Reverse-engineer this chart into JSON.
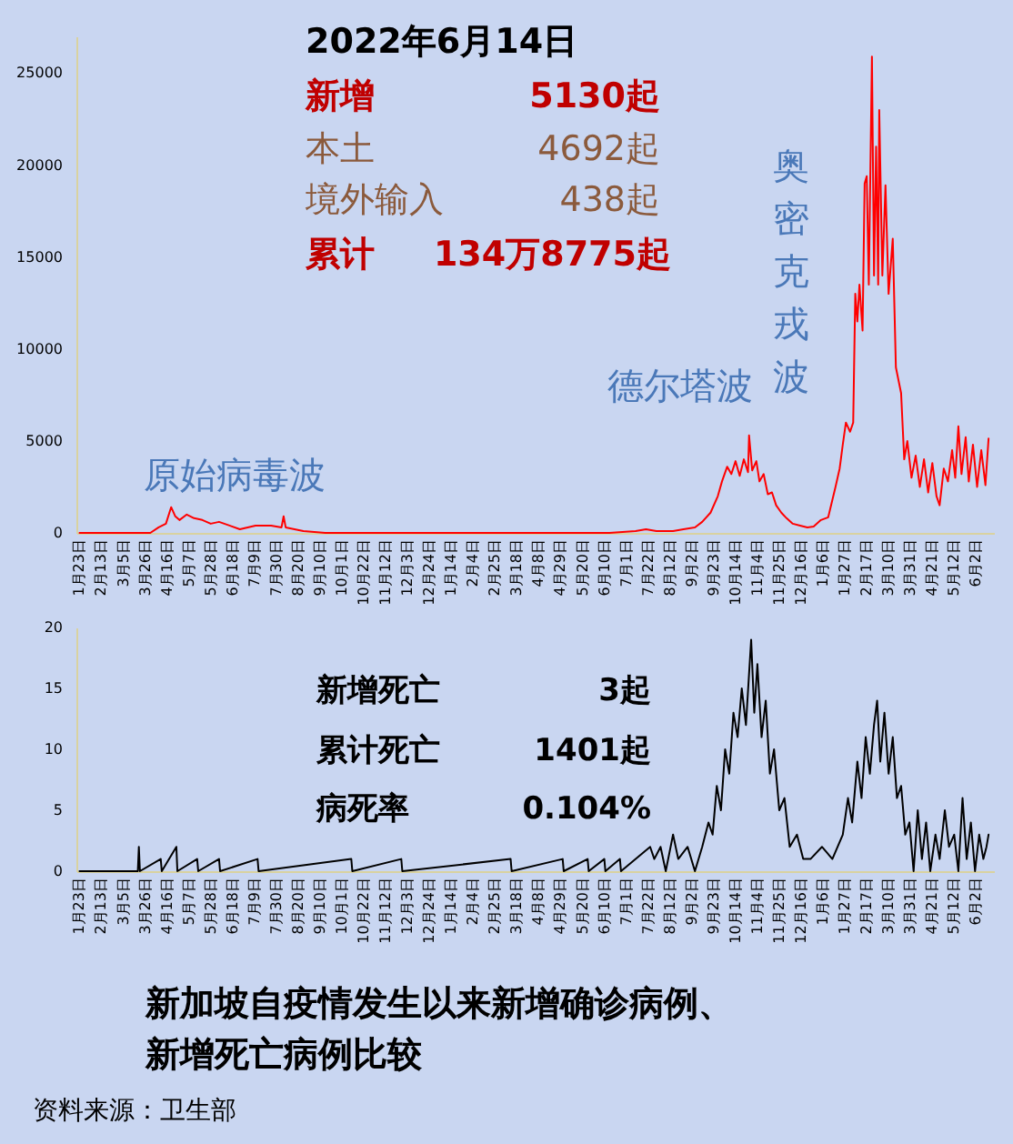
{
  "chart_data": [
    {
      "type": "line",
      "xlim": [
        "2020-01-20",
        "2022-06-20"
      ],
      "ylim": [
        0,
        27000
      ],
      "yticks": [
        0,
        5000,
        10000,
        15000,
        20000,
        25000
      ],
      "xticks": [
        {
          "value": "2020-01-23",
          "label": "1月23日"
        },
        {
          "value": "2020-02-13",
          "label": "2月13日"
        },
        {
          "value": "2020-03-05",
          "label": "3月5日"
        },
        {
          "value": "2020-03-26",
          "label": "3月26日"
        },
        {
          "value": "2020-04-16",
          "label": "4月16日"
        },
        {
          "value": "2020-05-07",
          "label": "5月7日"
        },
        {
          "value": "2020-05-28",
          "label": "5月28日"
        },
        {
          "value": "2020-06-18",
          "label": "6月18日"
        },
        {
          "value": "2020-07-09",
          "label": "7月9日"
        },
        {
          "value": "2020-07-30",
          "label": "7月30日"
        },
        {
          "value": "2020-08-20",
          "label": "8月20日"
        },
        {
          "value": "2020-09-10",
          "label": "9月10日"
        },
        {
          "value": "2020-10-01",
          "label": "10月1日"
        },
        {
          "value": "2020-10-22",
          "label": "10月22日"
        },
        {
          "value": "2020-11-12",
          "label": "11月12日"
        },
        {
          "value": "2020-12-03",
          "label": "12月3日"
        },
        {
          "value": "2020-12-24",
          "label": "12月24日"
        },
        {
          "value": "2021-01-14",
          "label": "1月14日"
        },
        {
          "value": "2021-02-04",
          "label": "2月4日"
        },
        {
          "value": "2021-02-25",
          "label": "2月25日"
        },
        {
          "value": "2021-03-18",
          "label": "3月18日"
        },
        {
          "value": "2021-04-08",
          "label": "4月8日"
        },
        {
          "value": "2021-04-29",
          "label": "4月29日"
        },
        {
          "value": "2021-05-20",
          "label": "5月20日"
        },
        {
          "value": "2021-06-10",
          "label": "6月10日"
        },
        {
          "value": "2021-07-01",
          "label": "7月1日"
        },
        {
          "value": "2021-07-22",
          "label": "7月22日"
        },
        {
          "value": "2021-08-12",
          "label": "8月12日"
        },
        {
          "value": "2021-09-02",
          "label": "9月2日"
        },
        {
          "value": "2021-09-23",
          "label": "9月23日"
        },
        {
          "value": "2021-10-14",
          "label": "10月14日"
        },
        {
          "value": "2021-11-04",
          "label": "11月4日"
        },
        {
          "value": "2021-11-25",
          "label": "11月25日"
        },
        {
          "value": "2021-12-16",
          "label": "12月16日"
        },
        {
          "value": "2022-01-06",
          "label": "1月6日"
        },
        {
          "value": "2022-01-27",
          "label": "1月27日"
        },
        {
          "value": "2022-02-17",
          "label": "2月17日"
        },
        {
          "value": "2022-03-10",
          "label": "3月10日"
        },
        {
          "value": "2022-03-31",
          "label": "3月31日"
        },
        {
          "value": "2022-04-21",
          "label": "4月21日"
        },
        {
          "value": "2022-05-12",
          "label": "5月12日"
        },
        {
          "value": "2022-06-02",
          "label": "6月2日"
        }
      ],
      "x": [
        "2020-01-23",
        "2020-02-15",
        "2020-03-15",
        "2020-03-31",
        "2020-04-08",
        "2020-04-15",
        "2020-04-20",
        "2020-04-24",
        "2020-04-28",
        "2020-05-05",
        "2020-05-12",
        "2020-05-20",
        "2020-05-28",
        "2020-06-05",
        "2020-06-15",
        "2020-06-25",
        "2020-07-10",
        "2020-07-25",
        "2020-08-04",
        "2020-08-06",
        "2020-08-08",
        "2020-08-25",
        "2020-09-15",
        "2020-10-15",
        "2021-01-01",
        "2021-04-01",
        "2021-05-15",
        "2021-06-15",
        "2021-07-10",
        "2021-07-20",
        "2021-07-30",
        "2021-08-15",
        "2021-08-25",
        "2021-09-05",
        "2021-09-12",
        "2021-09-20",
        "2021-09-27",
        "2021-10-01",
        "2021-10-06",
        "2021-10-10",
        "2021-10-14",
        "2021-10-18",
        "2021-10-22",
        "2021-10-26",
        "2021-10-27",
        "2021-10-30",
        "2021-11-03",
        "2021-11-06",
        "2021-11-10",
        "2021-11-14",
        "2021-11-18",
        "2021-11-22",
        "2021-11-27",
        "2021-12-02",
        "2021-12-08",
        "2021-12-15",
        "2021-12-22",
        "2021-12-28",
        "2022-01-04",
        "2022-01-11",
        "2022-01-18",
        "2022-01-22",
        "2022-01-25",
        "2022-01-28",
        "2022-02-01",
        "2022-02-04",
        "2022-02-06",
        "2022-02-08",
        "2022-02-10",
        "2022-02-13",
        "2022-02-15",
        "2022-02-17",
        "2022-02-19",
        "2022-02-22",
        "2022-02-24",
        "2022-02-26",
        "2022-02-28",
        "2022-03-01",
        "2022-03-04",
        "2022-03-07",
        "2022-03-10",
        "2022-03-14",
        "2022-03-17",
        "2022-03-22",
        "2022-03-25",
        "2022-03-28",
        "2022-04-01",
        "2022-04-05",
        "2022-04-09",
        "2022-04-13",
        "2022-04-17",
        "2022-04-21",
        "2022-04-25",
        "2022-04-28",
        "2022-05-02",
        "2022-05-06",
        "2022-05-10",
        "2022-05-13",
        "2022-05-16",
        "2022-05-19",
        "2022-05-23",
        "2022-05-26",
        "2022-05-30",
        "2022-06-03",
        "2022-06-07",
        "2022-06-11",
        "2022-06-14"
      ],
      "series": [
        {
          "color": "#ff0000",
          "values": [
            0,
            0,
            0,
            0,
            300,
            500,
            1400,
            900,
            700,
            1000,
            800,
            700,
            500,
            600,
            400,
            200,
            400,
            400,
            300,
            900,
            300,
            100,
            0,
            0,
            0,
            0,
            0,
            0,
            100,
            200,
            100,
            100,
            200,
            300,
            600,
            1100,
            2000,
            2800,
            3600,
            3200,
            3900,
            3100,
            4000,
            3300,
            5300,
            3400,
            3900,
            2800,
            3200,
            2100,
            2200,
            1500,
            1100,
            800,
            500,
            400,
            300,
            350,
            700,
            850,
            2500,
            3500,
            4800,
            6000,
            5500,
            6000,
            13000,
            11500,
            13500,
            11000,
            19000,
            19400,
            13500,
            25900,
            14000,
            21000,
            13500,
            23000,
            14000,
            18900,
            13000,
            16000,
            9000,
            7600,
            4000,
            5000,
            3000,
            4200,
            2500,
            4000,
            2200,
            3800,
            2000,
            1500,
            3500,
            2800,
            4500,
            3000,
            5800,
            3200,
            5200,
            2800,
            4800,
            2500,
            4500,
            2600,
            5130
          ]
        }
      ],
      "annotations": [
        "2022年6月14日",
        "新增",
        "5130起",
        "本土",
        "4692起",
        "境外输入",
        "438起",
        "累计",
        "134万8775起",
        "原始病毒波",
        "德尔塔波",
        "奥密克戎波"
      ]
    },
    {
      "type": "line",
      "xlim": [
        "2020-01-20",
        "2022-06-20"
      ],
      "ylim": [
        0,
        20
      ],
      "yticks": [
        0,
        5,
        10,
        15,
        20
      ],
      "title": "新加坡自疫情发生以来新增确诊病例、新增死亡病例比较",
      "xticks": [
        {
          "value": "2020-01-23",
          "label": "1月23日"
        },
        {
          "value": "2020-02-13",
          "label": "2月13日"
        },
        {
          "value": "2020-03-05",
          "label": "3月5日"
        },
        {
          "value": "2020-03-26",
          "label": "3月26日"
        },
        {
          "value": "2020-04-16",
          "label": "4月16日"
        },
        {
          "value": "2020-05-07",
          "label": "5月7日"
        },
        {
          "value": "2020-05-28",
          "label": "5月28日"
        },
        {
          "value": "2020-06-18",
          "label": "6月18日"
        },
        {
          "value": "2020-07-09",
          "label": "7月9日"
        },
        {
          "value": "2020-07-30",
          "label": "7月30日"
        },
        {
          "value": "2020-08-20",
          "label": "8月20日"
        },
        {
          "value": "2020-09-10",
          "label": "9月10日"
        },
        {
          "value": "2020-10-01",
          "label": "10月1日"
        },
        {
          "value": "2020-10-22",
          "label": "10月22日"
        },
        {
          "value": "2020-11-12",
          "label": "11月12日"
        },
        {
          "value": "2020-12-03",
          "label": "12月3日"
        },
        {
          "value": "2020-12-24",
          "label": "12月24日"
        },
        {
          "value": "2021-01-14",
          "label": "1月14日"
        },
        {
          "value": "2021-02-04",
          "label": "2月4日"
        },
        {
          "value": "2021-02-25",
          "label": "2月25日"
        },
        {
          "value": "2021-03-18",
          "label": "3月18日"
        },
        {
          "value": "2021-04-08",
          "label": "4月8日"
        },
        {
          "value": "2021-04-29",
          "label": "4月29日"
        },
        {
          "value": "2021-05-20",
          "label": "5月20日"
        },
        {
          "value": "2021-06-10",
          "label": "6月10日"
        },
        {
          "value": "2021-07-01",
          "label": "7月1日"
        },
        {
          "value": "2021-07-22",
          "label": "7月22日"
        },
        {
          "value": "2021-08-12",
          "label": "8月12日"
        },
        {
          "value": "2021-09-02",
          "label": "9月2日"
        },
        {
          "value": "2021-09-23",
          "label": "9月23日"
        },
        {
          "value": "2021-10-14",
          "label": "10月14日"
        },
        {
          "value": "2021-11-04",
          "label": "11月4日"
        },
        {
          "value": "2021-11-25",
          "label": "11月25日"
        },
        {
          "value": "2021-12-16",
          "label": "12月16日"
        },
        {
          "value": "2022-01-06",
          "label": "1月6日"
        },
        {
          "value": "2022-01-27",
          "label": "1月27日"
        },
        {
          "value": "2022-02-17",
          "label": "2月17日"
        },
        {
          "value": "2022-03-10",
          "label": "3月10日"
        },
        {
          "value": "2022-03-31",
          "label": "3月31日"
        },
        {
          "value": "2022-04-21",
          "label": "4月21日"
        },
        {
          "value": "2022-05-12",
          "label": "5月12日"
        },
        {
          "value": "2022-06-02",
          "label": "6月2日"
        }
      ],
      "x": [
        "2020-01-23",
        "2020-03-19",
        "2020-03-20",
        "2020-03-21",
        "2020-04-10",
        "2020-04-11",
        "2020-04-25",
        "2020-04-26",
        "2020-05-15",
        "2020-05-16",
        "2020-06-05",
        "2020-06-06",
        "2020-07-12",
        "2020-07-13",
        "2020-10-10",
        "2020-10-11",
        "2020-11-27",
        "2020-11-28",
        "2021-03-12",
        "2021-03-13",
        "2021-05-01",
        "2021-05-02",
        "2021-05-25",
        "2021-05-26",
        "2021-06-10",
        "2021-06-11",
        "2021-06-25",
        "2021-06-26",
        "2021-07-24",
        "2021-07-28",
        "2021-08-03",
        "2021-08-08",
        "2021-08-15",
        "2021-08-20",
        "2021-08-29",
        "2021-09-05",
        "2021-09-12",
        "2021-09-18",
        "2021-09-22",
        "2021-09-26",
        "2021-09-30",
        "2021-10-04",
        "2021-10-08",
        "2021-10-12",
        "2021-10-16",
        "2021-10-20",
        "2021-10-24",
        "2021-10-29",
        "2021-11-01",
        "2021-11-04",
        "2021-11-08",
        "2021-11-12",
        "2021-11-16",
        "2021-11-20",
        "2021-11-25",
        "2021-11-30",
        "2021-12-05",
        "2021-12-12",
        "2021-12-18",
        "2021-12-25",
        "2022-01-05",
        "2022-01-15",
        "2022-01-25",
        "2022-01-30",
        "2022-02-03",
        "2022-02-08",
        "2022-02-12",
        "2022-02-16",
        "2022-02-20",
        "2022-02-24",
        "2022-02-27",
        "2022-03-02",
        "2022-03-06",
        "2022-03-10",
        "2022-03-14",
        "2022-03-18",
        "2022-03-22",
        "2022-03-26",
        "2022-03-30",
        "2022-04-03",
        "2022-04-07",
        "2022-04-11",
        "2022-04-15",
        "2022-04-19",
        "2022-04-24",
        "2022-04-28",
        "2022-05-03",
        "2022-05-07",
        "2022-05-12",
        "2022-05-16",
        "2022-05-20",
        "2022-05-24",
        "2022-05-28",
        "2022-06-01",
        "2022-06-05",
        "2022-06-09",
        "2022-06-12",
        "2022-06-14"
      ],
      "series": [
        {
          "color": "#000000",
          "values": [
            0,
            0,
            2,
            0,
            1,
            0,
            2,
            0,
            1,
            0,
            1,
            0,
            1,
            0,
            1,
            0,
            1,
            0,
            1,
            0,
            1,
            0,
            1,
            0,
            1,
            0,
            1,
            0,
            2,
            1,
            2,
            0,
            3,
            1,
            2,
            0,
            2,
            4,
            3,
            7,
            5,
            10,
            8,
            13,
            11,
            15,
            12,
            19,
            13,
            17,
            11,
            14,
            8,
            10,
            5,
            6,
            2,
            3,
            1,
            1,
            2,
            1,
            3,
            6,
            4,
            9,
            6,
            11,
            8,
            12,
            14,
            9,
            13,
            8,
            11,
            6,
            7,
            3,
            4,
            0,
            5,
            1,
            4,
            0,
            3,
            1,
            5,
            2,
            3,
            0,
            6,
            1,
            4,
            0,
            3,
            1,
            2,
            3
          ]
        }
      ],
      "annotations": [
        "新增死亡",
        "3起",
        "累计死亡",
        "1401起",
        "病死率",
        "0.104%",
        "资料来源：卫生部"
      ]
    }
  ]
}
